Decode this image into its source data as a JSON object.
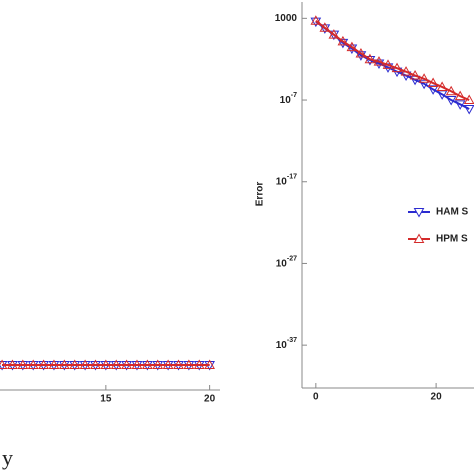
{
  "chart_data": [
    {
      "type": "line",
      "xlim": [
        9.9,
        20.5
      ],
      "xticks": [
        15,
        20
      ],
      "ylim": [
        -0.1,
        1.5
      ],
      "series": [
        {
          "name": "HAM",
          "color": "#2b2bd0",
          "marker": "triangle-down",
          "x": [
            10,
            10.5,
            11,
            11.5,
            12,
            12.5,
            13,
            13.5,
            14,
            14.5,
            15,
            15.5,
            16,
            16.5,
            17,
            17.5,
            18,
            18.5,
            19,
            19.5,
            20
          ],
          "values": [
            0,
            0,
            0,
            0,
            0,
            0,
            0,
            0,
            0,
            0,
            0,
            0,
            0,
            0,
            0,
            0,
            0,
            0,
            0,
            0,
            0
          ]
        },
        {
          "name": "HPM",
          "color": "#d42a2a",
          "marker": "triangle-up",
          "x": [
            10,
            10.5,
            11,
            11.5,
            12,
            12.5,
            13,
            13.5,
            14,
            14.5,
            15,
            15.5,
            16,
            16.5,
            17,
            17.5,
            18,
            18.5,
            19,
            19.5,
            20
          ],
          "values": [
            0,
            0,
            0,
            0,
            0,
            0,
            0,
            0,
            0,
            0,
            0,
            0,
            0,
            0,
            0,
            0,
            0,
            0,
            0,
            0,
            0
          ]
        }
      ]
    },
    {
      "type": "line",
      "y_label": "Error",
      "log_y": true,
      "legend": "center right",
      "xlim": [
        -2.3,
        26.3
      ],
      "xticks": [
        0,
        20
      ],
      "ylim": [
        1e-42,
        100000
      ],
      "yticks": [
        1000,
        {
          "value": 1e-07,
          "label": "10-7"
        },
        {
          "value": 1e-17,
          "label": "10-17"
        },
        {
          "value": 1e-27,
          "label": "10-27"
        },
        {
          "value": 1e-37,
          "label": "10-37"
        }
      ],
      "series": [
        {
          "name": "HAM S",
          "color": "#2b2bd0",
          "marker": "triangle-down",
          "x": [
            0,
            1.5,
            3,
            4.5,
            6,
            7.5,
            9,
            10.5,
            12,
            13.5,
            15,
            16.5,
            18,
            19.5,
            21,
            22.5,
            24,
            25.5
          ],
          "values": [
            400,
            60,
            10,
            1,
            0.2,
            0.03,
            0.008,
            0.003,
            0.001,
            0.0003,
            0.0001,
            3e-05,
            1e-05,
            2e-06,
            5e-07,
            1e-07,
            3e-08,
            8e-09
          ]
        },
        {
          "name": "HPM S",
          "color": "#d42a2a",
          "marker": "triangle-up",
          "x": [
            0,
            1.5,
            3,
            4.5,
            6,
            7.5,
            9,
            10.5,
            12,
            13.5,
            15,
            16.5,
            18,
            19.5,
            21,
            22.5,
            24,
            25.5
          ],
          "values": [
            500,
            70,
            10,
            1.5,
            0.3,
            0.05,
            0.01,
            0.005,
            0.002,
            0.0008,
            0.0003,
            0.0001,
            4e-05,
            1.2e-05,
            4e-06,
            1.2e-06,
            3e-07,
            1e-07
          ]
        }
      ]
    }
  ],
  "caption": "y"
}
